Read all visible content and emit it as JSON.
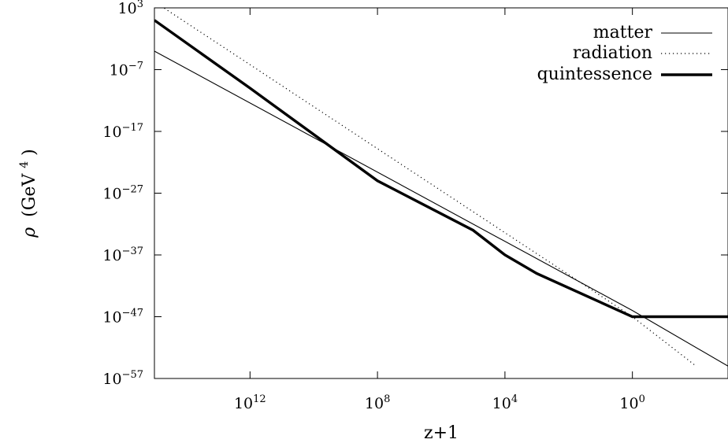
{
  "chart_data": {
    "type": "line",
    "xlabel": "z+1",
    "ylabel": {
      "symbol": "ρ",
      "unit": "(GeV",
      "unit_exp": "4",
      "unit_close": ")"
    },
    "x_scale": "log-reversed",
    "y_scale": "log",
    "xlim": [
      1000000000000000.0,
      0.001
    ],
    "ylim": [
      1e-57,
      1000.0
    ],
    "xticks": [
      {
        "base": "10",
        "exp": "12",
        "value": 1000000000000.0
      },
      {
        "base": "10",
        "exp": "8",
        "value": 100000000.0
      },
      {
        "base": "10",
        "exp": "4",
        "value": 10000.0
      },
      {
        "base": "10",
        "exp": "0",
        "value": 1
      }
    ],
    "yticks": [
      {
        "base": "10",
        "exp": "3",
        "value": 1000.0
      },
      {
        "base": "10",
        "exp": "−7",
        "value": 1e-07
      },
      {
        "base": "10",
        "exp": "−17",
        "value": 1e-17
      },
      {
        "base": "10",
        "exp": "−27",
        "value": 1e-27
      },
      {
        "base": "10",
        "exp": "−37",
        "value": 1e-37
      },
      {
        "base": "10",
        "exp": "−47",
        "value": 1e-47
      },
      {
        "base": "10",
        "exp": "−57",
        "value": 1e-57
      }
    ],
    "legend_position": "top-right",
    "series": [
      {
        "name": "matter",
        "style": "solid-thin",
        "points": [
          [
            1000000000000000.0,
            0.0001
          ],
          [
            1,
            1e-46
          ],
          [
            0.001,
            1e-55
          ]
        ]
      },
      {
        "name": "radiation",
        "style": "dotted",
        "points": [
          [
            1000000000000000.0,
            10000.0
          ],
          [
            1,
            1e-47
          ],
          [
            0.01,
            1e-55
          ]
        ]
      },
      {
        "name": "quintessence",
        "style": "solid-thick",
        "points": [
          [
            1000000000000000.0,
            10.0
          ],
          [
            1000000000000.0,
            1e-10
          ],
          [
            100000000.0,
            1e-25
          ],
          [
            100000.0,
            1e-33
          ],
          [
            10000.0,
            1e-37
          ],
          [
            1000.0,
            1e-40
          ],
          [
            1,
            1e-47
          ],
          [
            0.001,
            1e-47
          ]
        ]
      }
    ]
  }
}
